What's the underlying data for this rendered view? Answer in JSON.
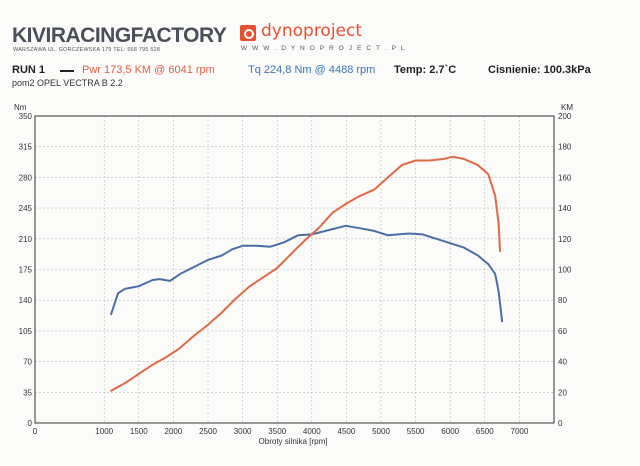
{
  "header": {
    "brand_left": "KIVIRACINGFACTORY",
    "brand_left_sub": "WARSZAWA UL. GORCZEWSKA 179   TEL: 668 795 528",
    "brand_right": "dynoproject",
    "brand_right_url": "W W W . D Y N O P R O J E C T . P L"
  },
  "run": {
    "label": "RUN 1",
    "power": "Pwr  173,5 KM @ 6041 rpm",
    "torque": "Tq  224,8 Nm @ 4488 rpm",
    "temperature": "Temp: 2.7`C",
    "pressure": "Cisnienie: 100.3kPa",
    "vehicle": "pom2 OPEL VECTRA B 2.2"
  },
  "colors": {
    "power": "#e06a45",
    "torque": "#4a6fa8",
    "grid": "#b8b8b8"
  },
  "chart_data": {
    "type": "line",
    "xlabel": "Obroty silnika [rpm]",
    "xlim": [
      0,
      7500
    ],
    "x_ticks": [
      0,
      1000,
      1500,
      2000,
      2500,
      3000,
      3500,
      4000,
      4500,
      5000,
      5500,
      6000,
      6500,
      7000
    ],
    "y_left": {
      "label": "Nm",
      "lim": [
        0,
        350
      ],
      "ticks": [
        0,
        35,
        70,
        105,
        140,
        175,
        210,
        245,
        280,
        315,
        350
      ]
    },
    "y_right": {
      "label": "KM",
      "lim": [
        0,
        200
      ],
      "ticks": [
        0,
        20,
        40,
        60,
        80,
        100,
        120,
        140,
        160,
        180,
        200
      ]
    },
    "series": [
      {
        "axis": "left",
        "x": [
          1100,
          1200,
          1300,
          1500,
          1700,
          1800,
          1950,
          2100,
          2300,
          2500,
          2700,
          2850,
          3000,
          3200,
          3400,
          3600,
          3800,
          4000,
          4200,
          4488,
          4700,
          4900,
          5100,
          5400,
          5600,
          5800,
          6000,
          6200,
          6400,
          6550,
          6650,
          6700,
          6750
        ],
        "values": [
          124,
          148,
          153,
          156,
          163,
          164,
          162,
          170,
          178,
          186,
          191,
          198,
          202,
          202,
          201,
          206,
          214,
          215,
          219,
          224.8,
          222,
          219,
          214,
          216,
          215,
          210,
          205,
          200,
          191,
          181,
          170,
          150,
          116
        ]
      },
      {
        "axis": "right",
        "x": [
          1100,
          1300,
          1500,
          1700,
          1900,
          2100,
          2300,
          2500,
          2700,
          2900,
          3100,
          3300,
          3500,
          3700,
          3900,
          4100,
          4300,
          4500,
          4700,
          4900,
          5100,
          5300,
          5500,
          5700,
          5900,
          6041,
          6200,
          6400,
          6550,
          6650,
          6700,
          6720
        ],
        "values": [
          21,
          26,
          32,
          38,
          43,
          49,
          57,
          64,
          72,
          81,
          89,
          95,
          101,
          110,
          119,
          127,
          137,
          143,
          148,
          152,
          160,
          168,
          171,
          171,
          172,
          173.5,
          172,
          168,
          162,
          148,
          130,
          112
        ]
      }
    ]
  }
}
